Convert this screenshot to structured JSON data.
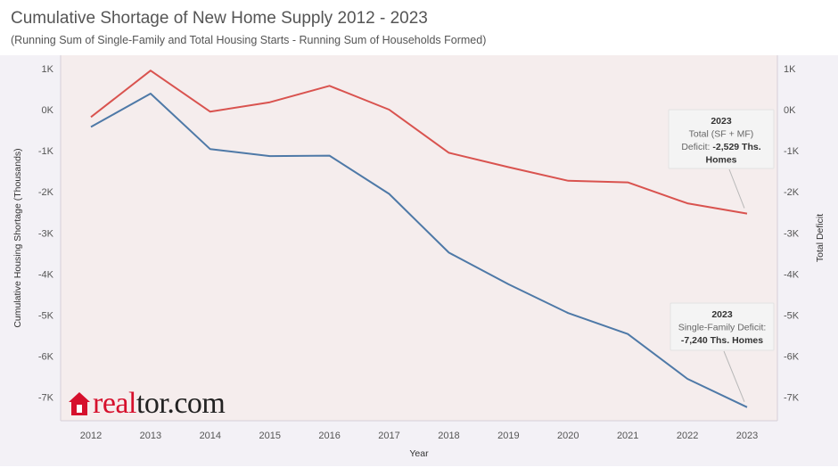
{
  "chart_data": {
    "type": "line",
    "title": "Cumulative Shortage of New Home Supply 2012 - 2023",
    "subtitle": "(Running Sum of Single-Family and Total Housing Starts - Running Sum of Households Formed)",
    "xlabel": "Year",
    "ylabel": "Cumulative Housing Shortage (Thousands)",
    "ylabel_right": "Total Deficit",
    "x": [
      2012,
      2013,
      2014,
      2015,
      2016,
      2017,
      2018,
      2019,
      2020,
      2021,
      2022,
      2023
    ],
    "x_tick_labels": [
      "2012",
      "2013",
      "2014",
      "2015",
      "2016",
      "2017",
      "2018",
      "2019",
      "2020",
      "2021",
      "2022",
      "2023"
    ],
    "ylim": [
      -7500,
      1250
    ],
    "y_ticks": [
      1000,
      0,
      -1000,
      -2000,
      -3000,
      -4000,
      -5000,
      -6000,
      -7000
    ],
    "y_tick_labels": [
      "1K",
      "0K",
      "-1K",
      "-2K",
      "-3K",
      "-4K",
      "-5K",
      "-6K",
      "-7K"
    ],
    "grid": false,
    "series": [
      {
        "key": "total",
        "color": "#d9534f",
        "values": [
          -180,
          950,
          -50,
          180,
          580,
          0,
          -1050,
          -1400,
          -1730,
          -1770,
          -2280,
          -2529
        ]
      },
      {
        "key": "single_family",
        "color": "#4e79a7",
        "values": [
          -420,
          390,
          -960,
          -1130,
          -1120,
          -2050,
          -3480,
          -4250,
          -4950,
          -5460,
          -6550,
          -7240
        ]
      }
    ],
    "annotations": [
      {
        "series": "total",
        "lines": [
          [
            {
              "t": "2023",
              "bold": true
            }
          ],
          [
            {
              "t": "Total (SF + MF)",
              "bold": false
            }
          ],
          [
            {
              "t": "Deficit: ",
              "bold": false
            },
            {
              "t": "-2,529 Ths.",
              "bold": true
            }
          ],
          [
            {
              "t": "Homes",
              "bold": true
            }
          ]
        ]
      },
      {
        "series": "single_family",
        "lines": [
          [
            {
              "t": "2023",
              "bold": true
            }
          ],
          [
            {
              "t": "Single-Family Deficit:",
              "bold": false
            }
          ],
          [
            {
              "t": "-7,240 Ths. Homes",
              "bold": true
            }
          ]
        ]
      }
    ],
    "background_color": "#f5eded",
    "axis_band_color": "#f3f1f6"
  },
  "logo": {
    "brand_part1": "real",
    "brand_part2": "tor.com"
  }
}
